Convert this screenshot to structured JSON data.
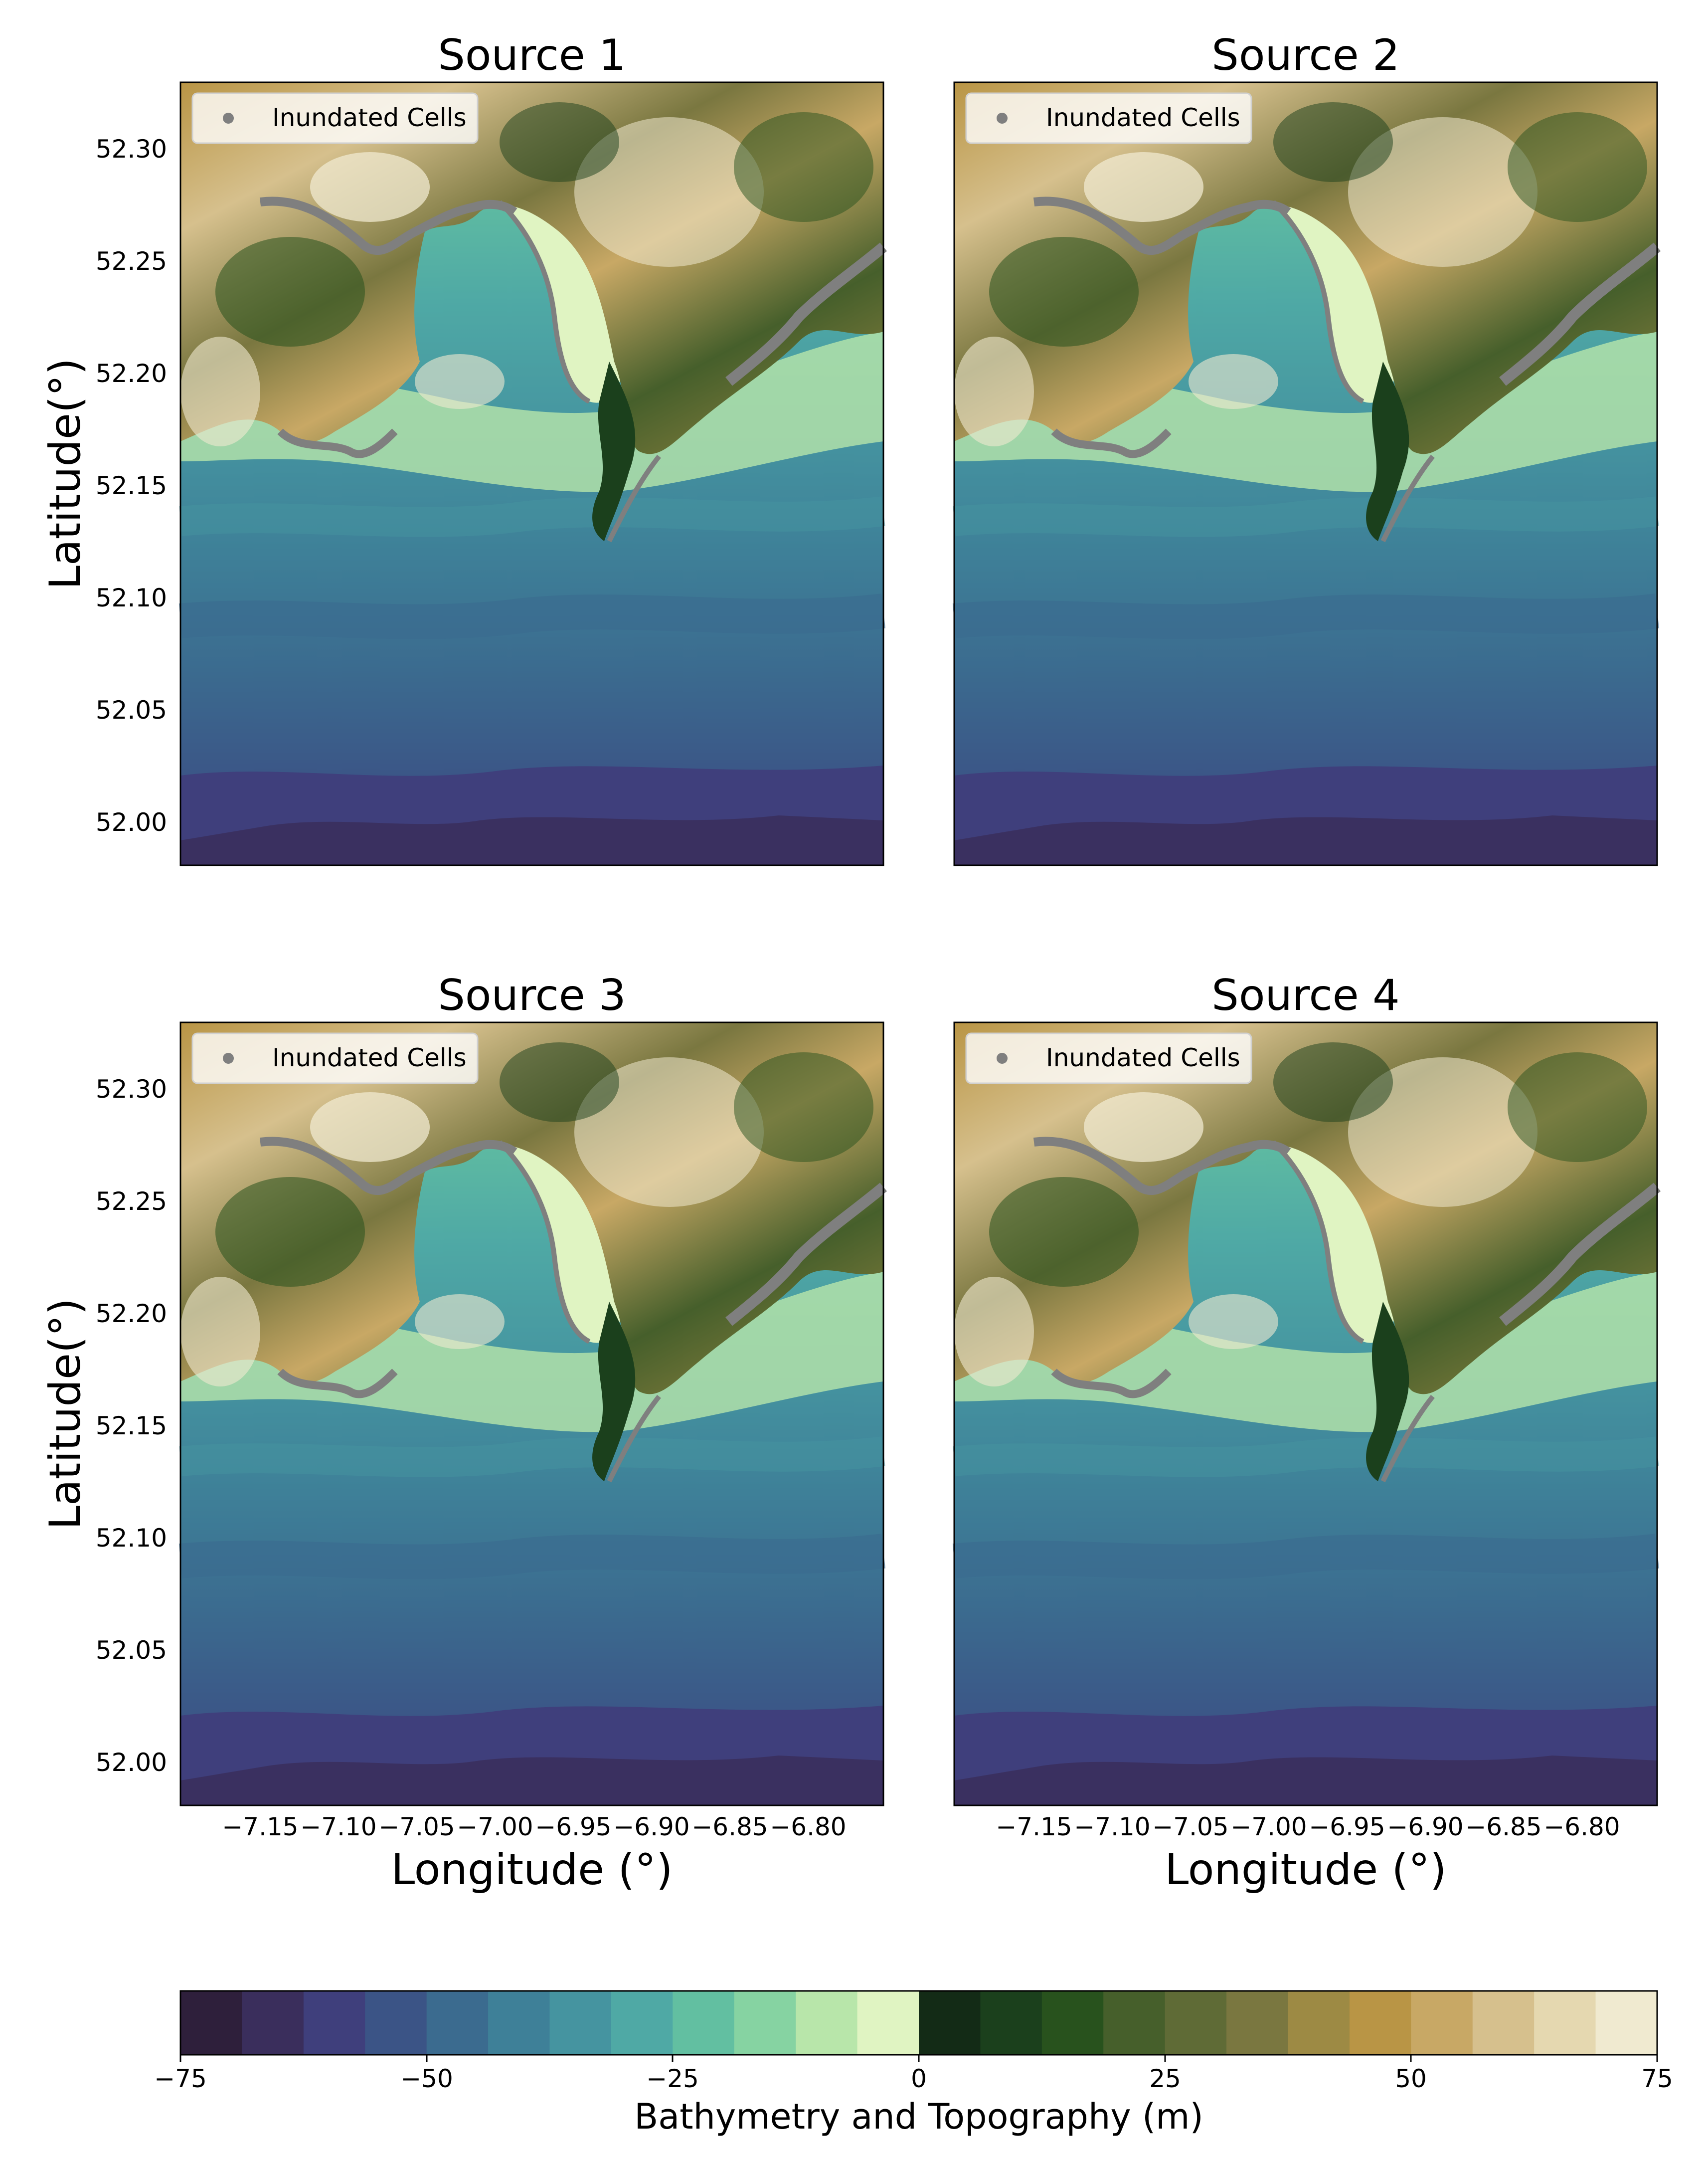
{
  "figure": {
    "x_axis_label": "Longitude (°)",
    "y_axis_label": "Latitude(°)",
    "longitude_ticks": [
      "−7.15",
      "−7.10",
      "−7.05",
      "−7.00",
      "−6.95",
      "−6.90",
      "−6.85",
      "−6.80"
    ],
    "latitude_ticks": [
      "52.30",
      "52.25",
      "52.20",
      "52.15",
      "52.10",
      "52.05",
      "52.00"
    ],
    "legend_label": "Inundated Cells",
    "legend_marker_color": "#7f7f7f"
  },
  "panels": [
    {
      "title": "Source 1"
    },
    {
      "title": "Source 2"
    },
    {
      "title": "Source 3"
    },
    {
      "title": "Source 4"
    }
  ],
  "colorbar": {
    "label": "Bathymetry and Topography (m)",
    "tick_labels": [
      "−75",
      "−50",
      "−25",
      "0",
      "25",
      "50",
      "75"
    ],
    "range": [
      -75,
      75
    ],
    "colors": [
      "#2e1f3b",
      "#3a2e5c",
      "#3f3f7c",
      "#3b5486",
      "#3b6b8f",
      "#3e8098",
      "#4594a0",
      "#4fa9a5",
      "#62bfa1",
      "#86d3a2",
      "#b8e6aa",
      "#e0f4c2",
      "#132b16",
      "#1b401c",
      "#28521d",
      "#465f2b",
      "#5f6b36",
      "#7a7740",
      "#9d8a44",
      "#b99545",
      "#c8a865",
      "#d6c08d",
      "#e5d8b0",
      "#f0ead0"
    ]
  }
}
